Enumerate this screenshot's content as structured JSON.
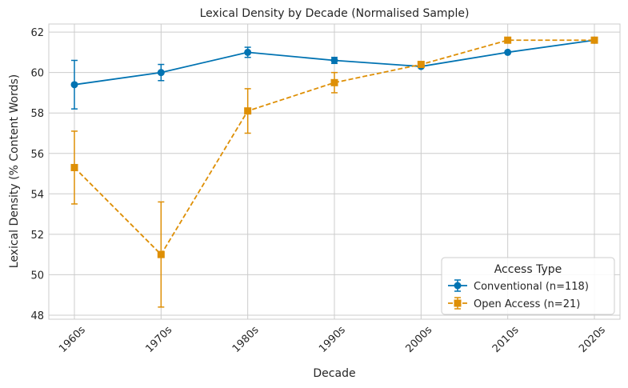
{
  "chart_data": {
    "type": "line",
    "title": "Lexical Density by Decade (Normalised Sample)",
    "xlabel": "Decade",
    "ylabel": "Lexical Density (% Content Words)",
    "categories": [
      "1960s",
      "1970s",
      "1980s",
      "1990s",
      "2000s",
      "2010s",
      "2020s"
    ],
    "ylim": [
      47.8,
      62.4
    ],
    "yticks": [
      48,
      50,
      52,
      54,
      56,
      58,
      60,
      62
    ],
    "grid": true,
    "legend": {
      "title": "Access Type",
      "placement": "lower-right"
    },
    "series": [
      {
        "name": "Conventional (n=118)",
        "color": "#0173b2",
        "marker": "circle",
        "linestyle": "solid",
        "values": [
          59.4,
          60.0,
          61.0,
          60.6,
          60.3,
          61.0,
          61.6
        ],
        "err": [
          1.2,
          0.4,
          0.25,
          0.15,
          0.0,
          0.0,
          0.0
        ]
      },
      {
        "name": "Open Access (n=21)",
        "color": "#de8f05",
        "marker": "square",
        "linestyle": "dashed",
        "values": [
          55.3,
          51.0,
          58.1,
          59.5,
          60.4,
          61.6,
          61.6
        ],
        "err": [
          1.8,
          2.6,
          1.1,
          0.5,
          0.0,
          0.0,
          0.0
        ]
      }
    ]
  }
}
